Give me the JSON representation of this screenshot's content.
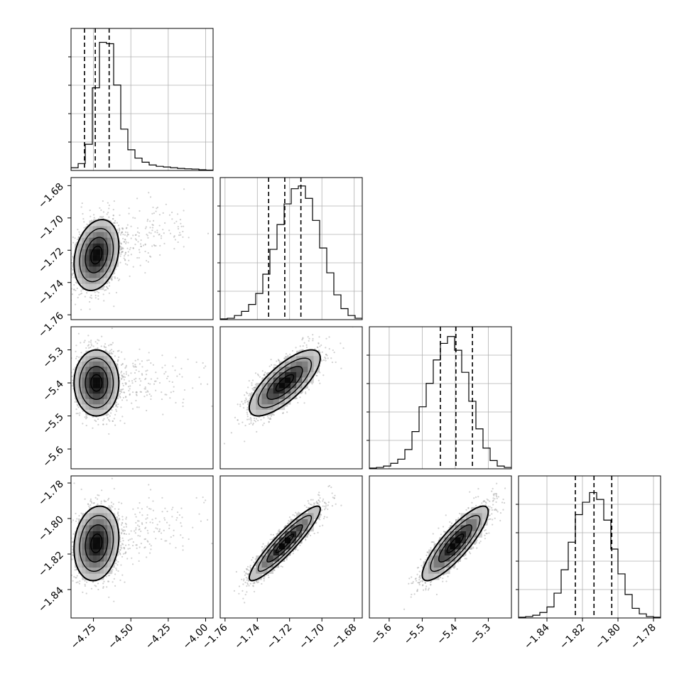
{
  "chart_data": {
    "type": "corner",
    "grid": true,
    "parameters": [
      {
        "range": [
          -4.9,
          -3.95
        ],
        "ticks": [
          -4.75,
          -4.5,
          -4.25,
          -4.0
        ],
        "tick_labels": [
          "−4.75",
          "−4.50",
          "−4.25",
          "−4.00"
        ],
        "quantiles": [
          -4.81,
          -4.738,
          -4.645
        ],
        "histogram": [
          0.02,
          0.05,
          0.19,
          0.6,
          0.93,
          0.92,
          0.62,
          0.3,
          0.15,
          0.09,
          0.06,
          0.04,
          0.03,
          0.025,
          0.02,
          0.015,
          0.012,
          0.01,
          0.005,
          0.003
        ]
      },
      {
        "range": [
          -1.763,
          -1.675
        ],
        "ticks": [
          -1.76,
          -1.74,
          -1.72,
          -1.7,
          -1.68
        ],
        "tick_labels": [
          "−1.76",
          "−1.74",
          "−1.72",
          "−1.70",
          "−1.68"
        ],
        "quantiles": [
          -1.733,
          -1.723,
          -1.713
        ],
        "histogram": [
          0.005,
          0.01,
          0.03,
          0.06,
          0.11,
          0.19,
          0.33,
          0.51,
          0.69,
          0.84,
          0.95,
          0.97,
          0.88,
          0.72,
          0.52,
          0.34,
          0.18,
          0.08,
          0.03,
          0.01
        ]
      },
      {
        "range": [
          -5.66,
          -5.23
        ],
        "ticks": [
          -5.6,
          -5.5,
          -5.4,
          -5.3
        ],
        "tick_labels": [
          "−5.6",
          "−5.5",
          "−5.4",
          "−5.3"
        ],
        "quantiles": [
          -5.445,
          -5.398,
          -5.348
        ],
        "histogram": [
          0.005,
          0.01,
          0.02,
          0.04,
          0.07,
          0.14,
          0.27,
          0.45,
          0.62,
          0.79,
          0.91,
          0.96,
          0.86,
          0.7,
          0.49,
          0.29,
          0.15,
          0.06,
          0.02,
          0.01
        ]
      },
      {
        "range": [
          -1.856,
          -1.776
        ],
        "ticks": [
          -1.84,
          -1.82,
          -1.8,
          -1.78
        ],
        "tick_labels": [
          "−1.84",
          "−1.82",
          "−1.80",
          "−1.78"
        ],
        "quantiles": [
          -1.824,
          -1.8135,
          -1.8035
        ],
        "histogram": [
          0.005,
          0.01,
          0.02,
          0.04,
          0.08,
          0.18,
          0.35,
          0.55,
          0.75,
          0.84,
          0.91,
          0.86,
          0.71,
          0.5,
          0.32,
          0.17,
          0.07,
          0.03,
          0.01,
          0.005
        ]
      }
    ],
    "pairs": [
      {
        "row": 1,
        "col": 0,
        "mean": [
          -4.73,
          -1.723
        ],
        "sd": [
          0.075,
          0.011
        ],
        "corr": 0.25,
        "tail": "right"
      },
      {
        "row": 2,
        "col": 0,
        "mean": [
          -4.73,
          -5.4
        ],
        "sd": [
          0.075,
          0.05
        ],
        "corr": 0.0,
        "tail": "right"
      },
      {
        "row": 2,
        "col": 1,
        "mean": [
          -1.723,
          -5.4
        ],
        "sd": [
          0.011,
          0.05
        ],
        "corr": 0.75,
        "tail": "none"
      },
      {
        "row": 3,
        "col": 0,
        "mean": [
          -4.73,
          -1.814
        ],
        "sd": [
          0.075,
          0.0105
        ],
        "corr": 0.15,
        "tail": "right"
      },
      {
        "row": 3,
        "col": 1,
        "mean": [
          -1.723,
          -1.814
        ],
        "sd": [
          0.011,
          0.0105
        ],
        "corr": 0.92,
        "tail": "none"
      },
      {
        "row": 3,
        "col": 2,
        "mean": [
          -5.4,
          -1.814
        ],
        "sd": [
          0.05,
          0.0105
        ],
        "corr": 0.85,
        "tail": "none"
      }
    ],
    "contour_levels_sigma": [
      0.5,
      1.0,
      1.5,
      2.0
    ]
  }
}
